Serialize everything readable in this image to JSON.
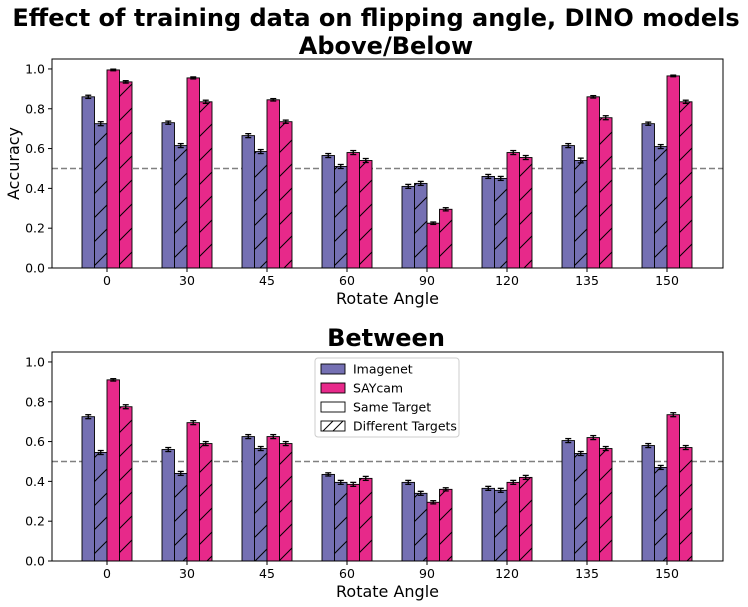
{
  "figure": {
    "title_line1": "Effect of training data on flipping angle, DINO models",
    "title_line2": "Above/Below",
    "subplot2_title": "Between"
  },
  "colors": {
    "imagenet": "#7570b3",
    "saycam": "#e7298a",
    "reference_line": "#808080",
    "errorbar": "#000000"
  },
  "chart_data": [
    {
      "type": "bar",
      "title": "Above/Below",
      "xlabel": "Rotate Angle",
      "ylabel": "Accuracy",
      "categories": [
        "0",
        "30",
        "45",
        "60",
        "90",
        "120",
        "135",
        "150"
      ],
      "ylim": [
        0,
        1.05
      ],
      "yticks": [
        "0.0",
        "0.2",
        "0.4",
        "0.6",
        "0.8",
        "1.0"
      ],
      "reference_line": 0.5,
      "series": [
        {
          "name": "Imagenet, Same Target",
          "training": "Imagenet",
          "target": "Same Target",
          "hatch": false,
          "values": [
            0.86,
            0.73,
            0.665,
            0.565,
            0.41,
            0.46,
            0.615,
            0.725
          ],
          "errors": [
            0.008,
            0.008,
            0.01,
            0.01,
            0.01,
            0.01,
            0.01,
            0.008
          ]
        },
        {
          "name": "Imagenet, Different Targets",
          "training": "Imagenet",
          "target": "Different Targets",
          "hatch": true,
          "values": [
            0.725,
            0.615,
            0.585,
            0.51,
            0.425,
            0.45,
            0.54,
            0.61
          ],
          "errors": [
            0.01,
            0.01,
            0.01,
            0.01,
            0.01,
            0.01,
            0.012,
            0.01
          ]
        },
        {
          "name": "SAYcam, Same Target",
          "training": "SAYcam",
          "target": "Same Target",
          "hatch": false,
          "values": [
            0.995,
            0.955,
            0.845,
            0.58,
            0.225,
            0.58,
            0.86,
            0.965
          ],
          "errors": [
            0.004,
            0.005,
            0.006,
            0.01,
            0.006,
            0.01,
            0.006,
            0.004
          ]
        },
        {
          "name": "SAYcam, Different Targets",
          "training": "SAYcam",
          "target": "Different Targets",
          "hatch": true,
          "values": [
            0.935,
            0.835,
            0.735,
            0.54,
            0.295,
            0.555,
            0.755,
            0.835
          ],
          "errors": [
            0.006,
            0.008,
            0.008,
            0.01,
            0.008,
            0.01,
            0.01,
            0.008
          ]
        }
      ]
    },
    {
      "type": "bar",
      "title": "Between",
      "xlabel": "Rotate Angle",
      "ylabel": "",
      "categories": [
        "0",
        "30",
        "45",
        "60",
        "90",
        "120",
        "135",
        "150"
      ],
      "ylim": [
        0,
        1.05
      ],
      "yticks": [
        "0.0",
        "0.2",
        "0.4",
        "0.6",
        "0.8",
        "1.0"
      ],
      "reference_line": 0.5,
      "legend": {
        "placement": "top-center",
        "entries": [
          {
            "label": "Imagenet",
            "kind": "color",
            "color": "#7570b3"
          },
          {
            "label": "SAYcam",
            "kind": "color",
            "color": "#e7298a"
          },
          {
            "label": "Same Target",
            "kind": "outline"
          },
          {
            "label": "Different Targets",
            "kind": "hatch"
          }
        ]
      },
      "series": [
        {
          "name": "Imagenet, Same Target",
          "training": "Imagenet",
          "target": "Same Target",
          "hatch": false,
          "values": [
            0.725,
            0.56,
            0.625,
            0.435,
            0.395,
            0.365,
            0.605,
            0.58
          ],
          "errors": [
            0.01,
            0.01,
            0.01,
            0.008,
            0.01,
            0.01,
            0.01,
            0.01
          ]
        },
        {
          "name": "Imagenet, Different Targets",
          "training": "Imagenet",
          "target": "Different Targets",
          "hatch": true,
          "values": [
            0.545,
            0.44,
            0.565,
            0.395,
            0.34,
            0.355,
            0.54,
            0.47
          ],
          "errors": [
            0.01,
            0.01,
            0.01,
            0.01,
            0.01,
            0.01,
            0.01,
            0.01
          ]
        },
        {
          "name": "SAYcam, Same Target",
          "training": "SAYcam",
          "target": "Same Target",
          "hatch": false,
          "values": [
            0.91,
            0.695,
            0.625,
            0.385,
            0.295,
            0.395,
            0.62,
            0.735
          ],
          "errors": [
            0.006,
            0.01,
            0.01,
            0.01,
            0.008,
            0.01,
            0.01,
            0.01
          ]
        },
        {
          "name": "SAYcam, Different Targets",
          "training": "SAYcam",
          "target": "Different Targets",
          "hatch": true,
          "values": [
            0.775,
            0.59,
            0.59,
            0.415,
            0.36,
            0.42,
            0.565,
            0.57
          ],
          "errors": [
            0.01,
            0.01,
            0.01,
            0.01,
            0.008,
            0.01,
            0.01,
            0.01
          ]
        }
      ]
    }
  ]
}
